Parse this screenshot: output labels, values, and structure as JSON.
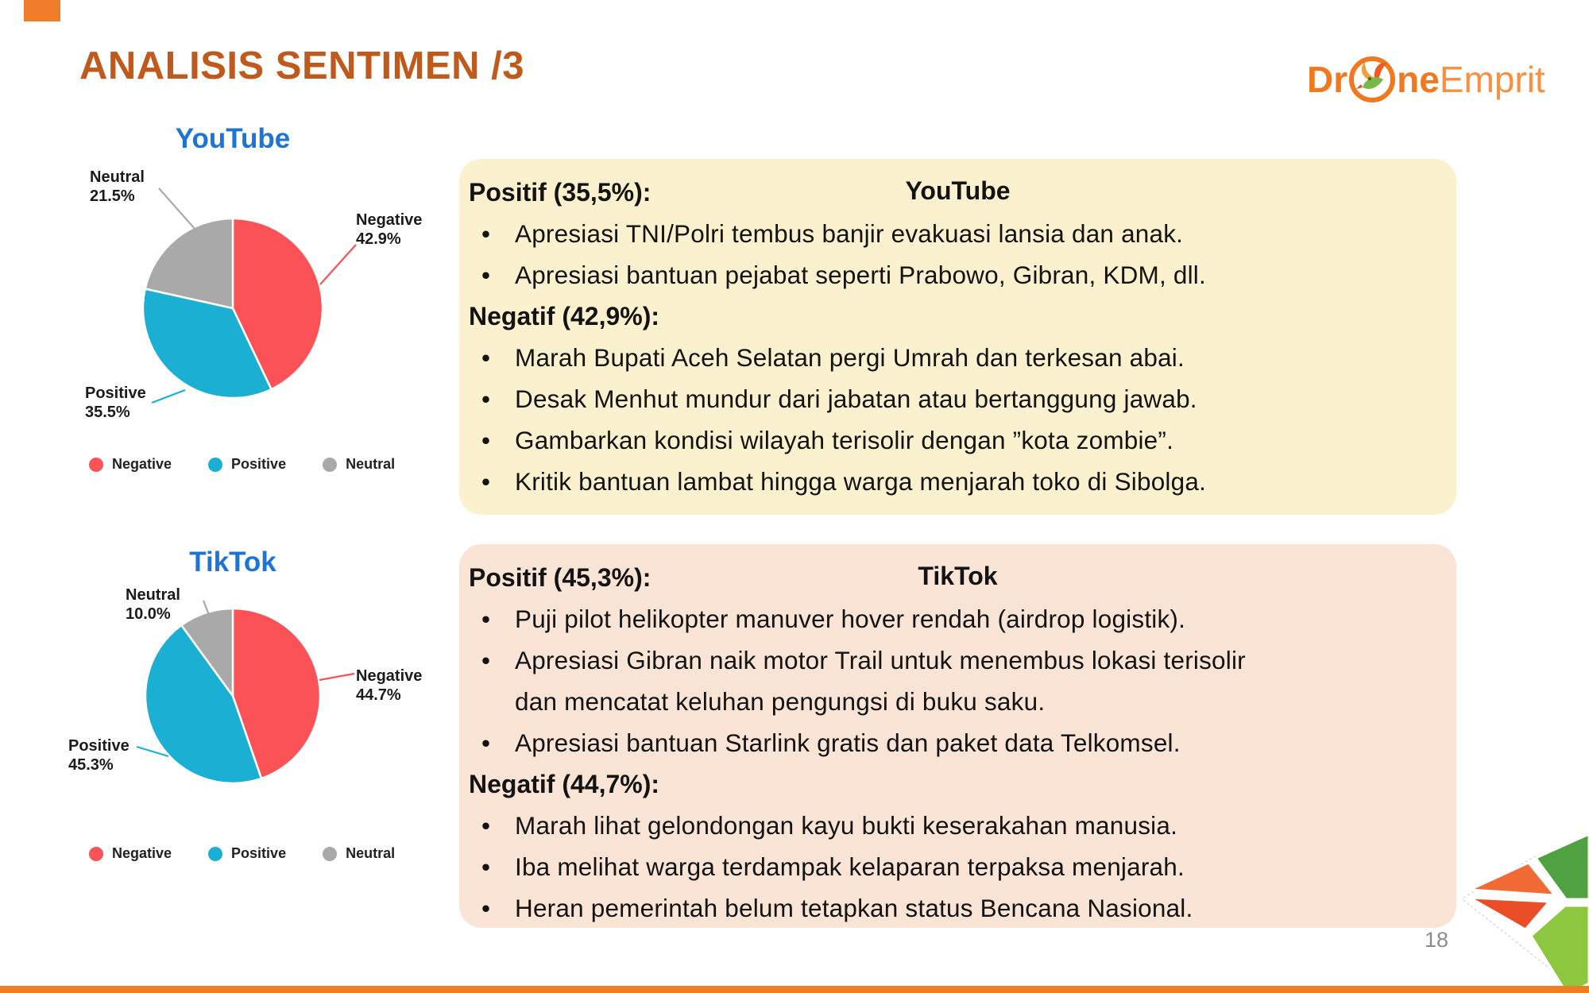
{
  "slide": {
    "title": "ANALISIS SENTIMEN /3",
    "page_number": "18"
  },
  "logo": {
    "part1": "Dr",
    "part2": "ne",
    "part3": "Emprit"
  },
  "colors": {
    "accent_title": "#C05A1C",
    "logo_orange": "#F0781F",
    "chart_title_blue": "#1B74D6",
    "negative": "#FA5257",
    "positive": "#1CAFD4",
    "neutral": "#A9A9A9",
    "youtube_box_bg": "#FCF1CE",
    "tiktok_box_bg": "#FAE4D6",
    "footer_bar": "#EE7D23"
  },
  "chart_data": [
    {
      "type": "pie",
      "title": "YouTube",
      "legend_position": "bottom",
      "start_angle": "12 o'clock, clockwise",
      "slices": [
        {
          "label": "Negative",
          "value": 42.9,
          "display": "42.9%",
          "color": "#FA5257"
        },
        {
          "label": "Positive",
          "value": 35.5,
          "display": "35.5%",
          "color": "#1CAFD4"
        },
        {
          "label": "Neutral",
          "value": 21.5,
          "display": "21.5%",
          "color": "#A9A9A9"
        }
      ]
    },
    {
      "type": "pie",
      "title": "TikTok",
      "legend_position": "bottom",
      "start_angle": "12 o'clock, clockwise",
      "slices": [
        {
          "label": "Negative",
          "value": 44.7,
          "display": "44.7%",
          "color": "#FA5257"
        },
        {
          "label": "Positive",
          "value": 45.3,
          "display": "45.3%",
          "color": "#1CAFD4"
        },
        {
          "label": "Neutral",
          "value": 10.0,
          "display": "10.0%",
          "color": "#A9A9A9"
        }
      ]
    }
  ],
  "youtube_box": {
    "header": "YouTube",
    "sections": [
      {
        "heading": "Positif (35,5%):",
        "bullets": [
          "Apresiasi TNI/Polri tembus banjir evakuasi lansia dan anak.",
          "Apresiasi bantuan pejabat seperti Prabowo, Gibran, KDM, dll."
        ]
      },
      {
        "heading": "Negatif (42,9%):",
        "bullets": [
          "Marah Bupati Aceh Selatan pergi Umrah dan terkesan abai.",
          "Desak Menhut mundur dari jabatan atau bertanggung jawab.",
          "Gambarkan kondisi wilayah terisolir dengan ”kota zombie”.",
          "Kritik bantuan lambat hingga warga menjarah toko di Sibolga."
        ]
      }
    ]
  },
  "tiktok_box": {
    "header": "TikTok",
    "sections": [
      {
        "heading": "Positif (45,3%):",
        "bullets": [
          "Puji pilot helikopter manuver hover rendah (airdrop logistik).",
          "Apresiasi Gibran naik motor Trail untuk menembus lokasi terisolir dan mencatat keluhan pengungsi di buku saku.",
          "Apresiasi bantuan Starlink gratis dan paket data Telkomsel."
        ]
      },
      {
        "heading": "Negatif (44,7%):",
        "bullets": [
          "Marah lihat gelondongan kayu bukti keserakahan manusia.",
          "Iba melihat warga terdampak kelaparan terpaksa menjarah.",
          "Heran pemerintah belum tetapkan status Bencana Nasional."
        ]
      }
    ]
  }
}
